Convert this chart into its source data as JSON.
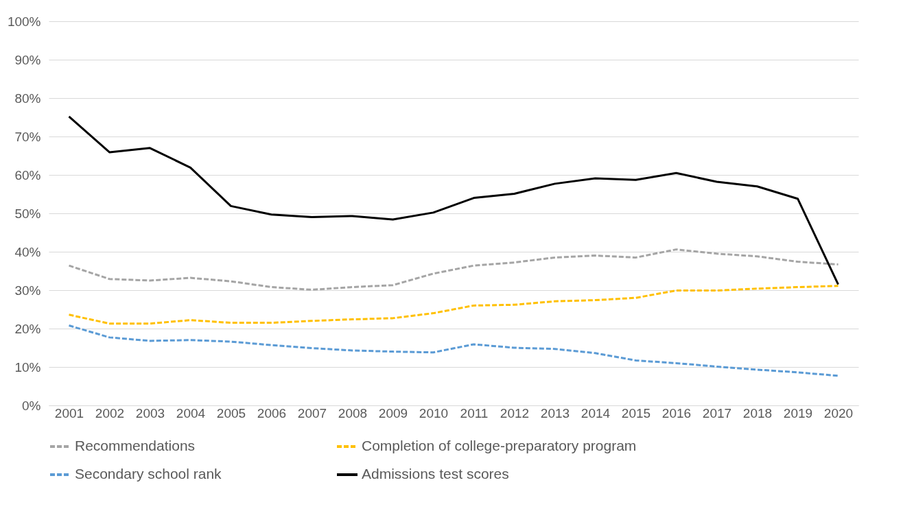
{
  "chart_data": {
    "type": "line",
    "categories": [
      "2001",
      "2002",
      "2003",
      "2004",
      "2005",
      "2006",
      "2007",
      "2008",
      "2009",
      "2010",
      "2011",
      "2012",
      "2013",
      "2014",
      "2015",
      "2016",
      "2017",
      "2018",
      "2019",
      "2020"
    ],
    "ylim": [
      0,
      100
    ],
    "yticks": [
      {
        "value": 0,
        "label": "0%"
      },
      {
        "value": 10,
        "label": "10%"
      },
      {
        "value": 20,
        "label": "20%"
      },
      {
        "value": 30,
        "label": "30%"
      },
      {
        "value": 40,
        "label": "40%"
      },
      {
        "value": 50,
        "label": "50%"
      },
      {
        "value": 60,
        "label": "60%"
      },
      {
        "value": 70,
        "label": "70%"
      },
      {
        "value": 80,
        "label": "80%"
      },
      {
        "value": 90,
        "label": "90%"
      },
      {
        "value": 100,
        "label": "100%"
      }
    ],
    "grid": "y",
    "legend": "bottom",
    "marker": "none",
    "series": [
      {
        "name": "Recommendations",
        "color": "#a5a5a5",
        "line_style": "dashed",
        "values": [
          36.4,
          32.9,
          32.5,
          33.2,
          32.3,
          30.8,
          30.1,
          30.8,
          31.3,
          34.3,
          36.4,
          37.2,
          38.5,
          39.0,
          38.5,
          40.6,
          39.5,
          38.8,
          37.4,
          36.7
        ]
      },
      {
        "name": "Completion of college-preparatory program",
        "color": "#ffc000",
        "line_style": "dashed",
        "values": [
          23.6,
          21.3,
          21.3,
          22.2,
          21.5,
          21.5,
          22.0,
          22.4,
          22.7,
          24.0,
          26.0,
          26.2,
          27.1,
          27.4,
          28.0,
          29.9,
          29.9,
          30.4,
          30.8,
          31.1
        ]
      },
      {
        "name": "Secondary school rank",
        "color": "#5b9bd5",
        "line_style": "dashed",
        "values": [
          20.8,
          17.7,
          16.8,
          17.0,
          16.6,
          15.7,
          14.9,
          14.3,
          14.0,
          13.8,
          15.9,
          15.0,
          14.7,
          13.6,
          11.7,
          11.0,
          10.1,
          9.3,
          8.6,
          7.7
        ]
      },
      {
        "name": "Admissions test scores",
        "color": "#000000",
        "line_style": "solid",
        "values": [
          75.2,
          65.9,
          67.0,
          61.9,
          51.9,
          49.7,
          49.0,
          49.3,
          48.4,
          50.2,
          54.0,
          55.1,
          57.7,
          59.1,
          58.7,
          60.5,
          58.2,
          57.0,
          53.8,
          31.5
        ]
      }
    ]
  }
}
